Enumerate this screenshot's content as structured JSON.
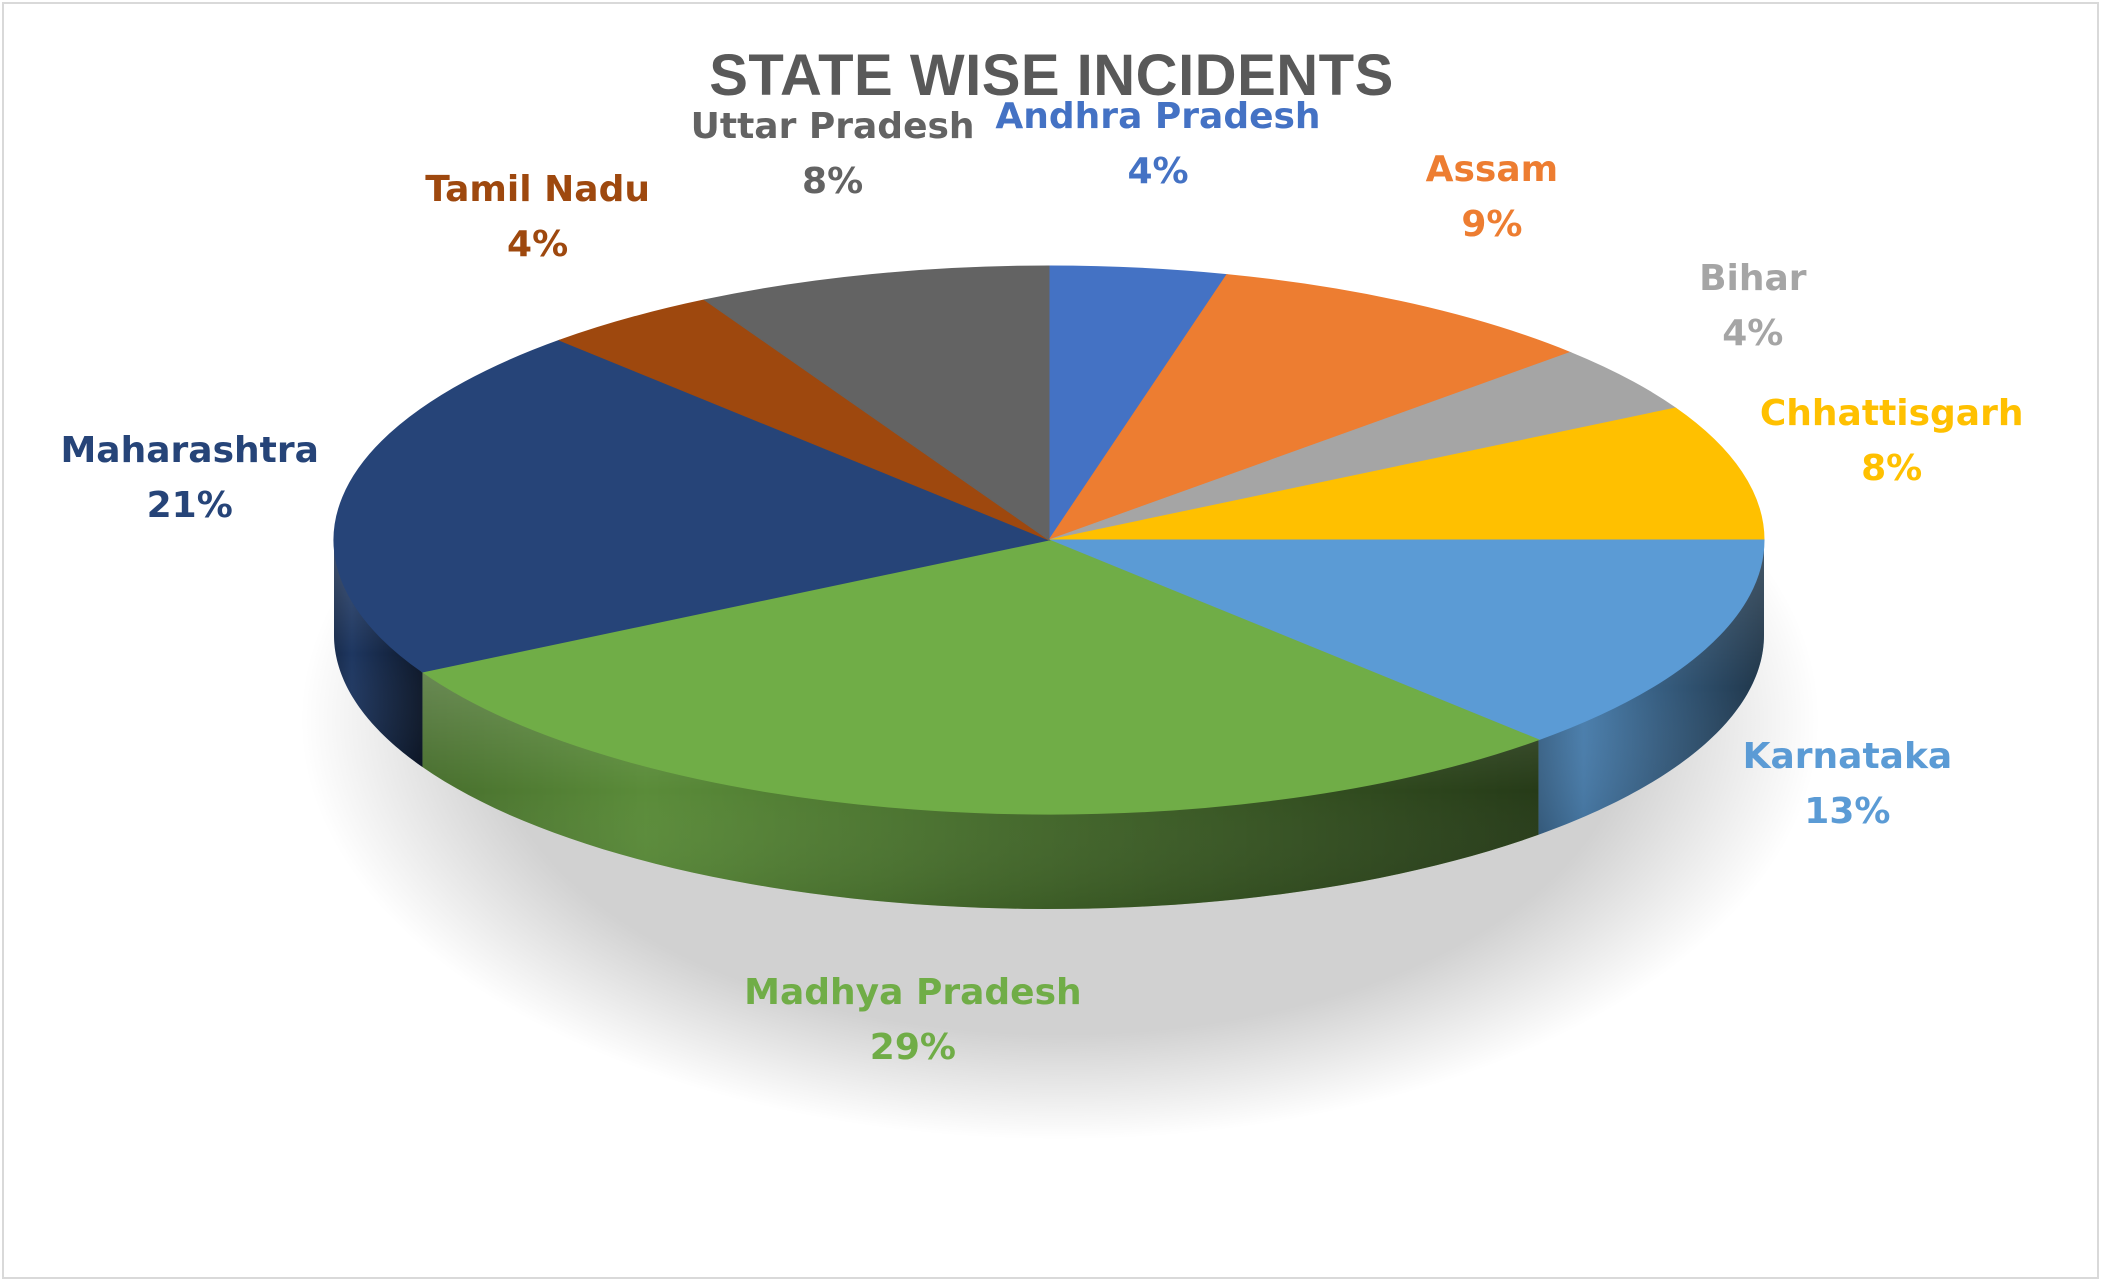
{
  "chart_data": {
    "type": "pie",
    "title": "STATE WISE INCIDENTS",
    "categories": [
      "Andhra Pradesh",
      "Assam",
      "Bihar",
      "Chhattisgarh",
      "Karnataka",
      "Madhya Pradesh",
      "Maharashtra",
      "Tamil Nadu",
      "Uttar Pradesh"
    ],
    "values": [
      4,
      9,
      4,
      8,
      13,
      29,
      21,
      4,
      8
    ],
    "labels": [
      "4%",
      "9%",
      "4%",
      "8%",
      "13%",
      "29%",
      "21%",
      "4%",
      "8%"
    ],
    "colors": [
      "#4472C4",
      "#ED7D31",
      "#A5A5A5",
      "#FFC000",
      "#5B9BD5",
      "#70AD47",
      "#264478",
      "#9E480E",
      "#636363"
    ],
    "label_colors": [
      "#4472C4",
      "#ED7D31",
      "#A5A5A5",
      "#FFC000",
      "#5B9BD5",
      "#70AD47",
      "#264478",
      "#9E480E",
      "#636363"
    ],
    "style": "3d-pie",
    "legend": "none",
    "data_labels": "category-and-percent"
  }
}
